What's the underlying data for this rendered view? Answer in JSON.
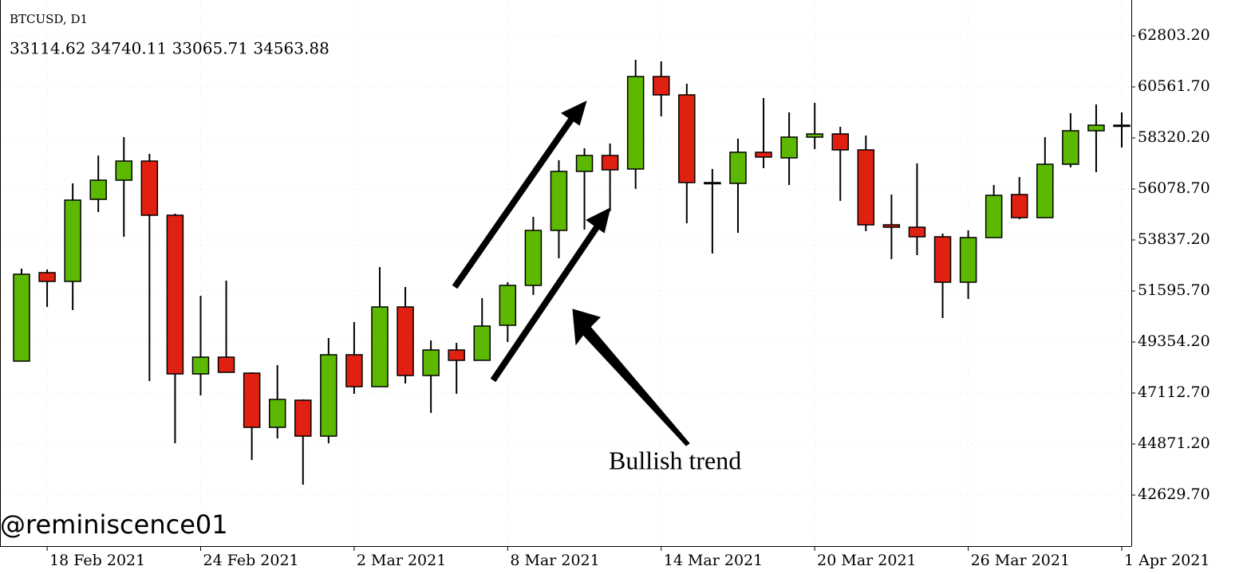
{
  "chart_data": {
    "type": "candlestick",
    "title": "BTCUSD, D1",
    "ohlc_text": "33114.62 34740.11 33065.71 34563.88",
    "annotation": "Bullish trend",
    "watermark": "@reminiscence01",
    "categories": [
      null,
      "18 Feb 2021",
      null,
      null,
      null,
      null,
      null,
      "24 Feb 2021",
      null,
      null,
      null,
      null,
      null,
      "2 Mar 2021",
      null,
      null,
      null,
      null,
      null,
      "8 Mar 2021",
      null,
      null,
      null,
      null,
      null,
      "14 Mar 2021",
      null,
      null,
      null,
      null,
      null,
      "20 Mar 2021",
      null,
      null,
      null,
      null,
      null,
      "26 Mar 2021",
      null,
      null,
      null,
      null,
      null,
      "1 Apr 2021"
    ],
    "open": [
      48514,
      52401,
      52016,
      55623,
      56464,
      57304,
      54923,
      47953,
      48689,
      47988,
      45607,
      46797,
      45221,
      48794,
      47393,
      50895,
      47883,
      49004,
      48549,
      50090,
      51841,
      54257,
      56849,
      57549,
      56954,
      61017,
      60211,
      56359,
      56324,
      57690,
      57444,
      58355,
      58495,
      57795,
      54503,
      54397,
      53977,
      51981,
      53942,
      55833,
      54818,
      57164,
      58635,
      58845
    ],
    "high": [
      52576,
      52541,
      56324,
      57549,
      58355,
      57620,
      54993,
      51385,
      52051,
      48023,
      48338,
      46832,
      49529,
      50230,
      52646,
      51771,
      49424,
      49319,
      51280,
      51981,
      54853,
      57339,
      57865,
      58075,
      61752,
      61682,
      60702,
      56954,
      58285,
      60071,
      59441,
      59861,
      58810,
      58425,
      55833,
      57199,
      54117,
      54257,
      56254,
      56604,
      58355,
      59406,
      59791,
      59441
    ],
    "low": [
      48514,
      50895,
      50755,
      55063,
      53977,
      47638,
      44906,
      47008,
      48023,
      44171,
      45116,
      43085,
      44906,
      47078,
      47393,
      47533,
      46237,
      47078,
      48549,
      49354,
      51420,
      53032,
      54292,
      55098,
      56079,
      59266,
      54573,
      53242,
      54152,
      56989,
      56254,
      57830,
      55553,
      54222,
      52996,
      53172,
      50405,
      51245,
      53942,
      54748,
      54818,
      57024,
      56814,
      57900
    ],
    "close": [
      52331,
      52016,
      55588,
      56464,
      57304,
      54923,
      47953,
      48689,
      48023,
      45607,
      46832,
      45221,
      48794,
      47393,
      50895,
      47883,
      49004,
      48549,
      50055,
      51841,
      54257,
      56849,
      57549,
      56919,
      61017,
      60211,
      56359,
      56324,
      57690,
      57479,
      58355,
      58495,
      57795,
      54503,
      54397,
      53977,
      51981,
      53942,
      55798,
      54818,
      57164,
      58635,
      58880,
      58880
    ],
    "up_color": "#5cb800",
    "down_color": "#e02010",
    "ylim": [
      40388.5,
      64379.2
    ],
    "yticks": [
      {
        "value": 42629.7,
        "label": "42629.70"
      },
      {
        "value": 44871.2,
        "label": "44871.20"
      },
      {
        "value": 47112.7,
        "label": "47112.70"
      },
      {
        "value": 49354.2,
        "label": "49354.20"
      },
      {
        "value": 51595.7,
        "label": "51595.70"
      },
      {
        "value": 53837.2,
        "label": "53837.20"
      },
      {
        "value": 56078.7,
        "label": "56078.70"
      },
      {
        "value": 58320.2,
        "label": "58320.20"
      },
      {
        "value": 60561.7,
        "label": "60561.70"
      },
      {
        "value": 62803.2,
        "label": "62803.20"
      }
    ],
    "grid": true
  }
}
